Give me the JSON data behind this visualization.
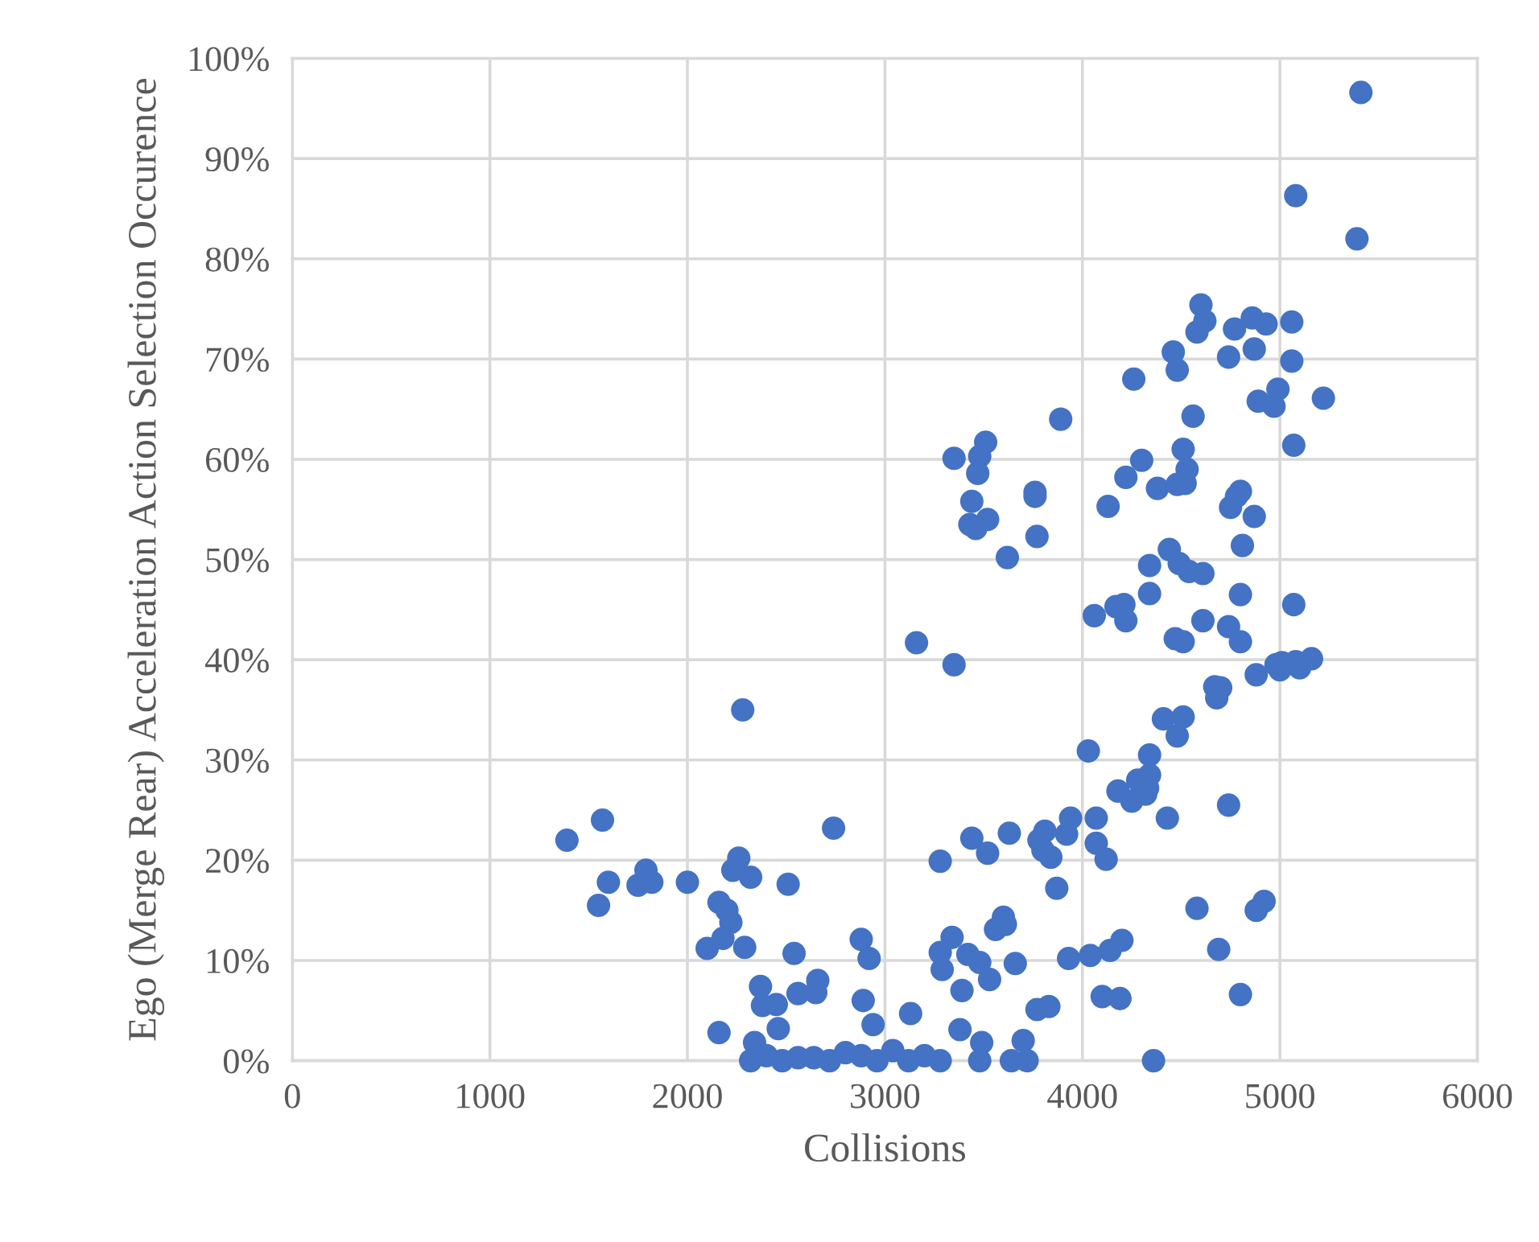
{
  "chart_data": {
    "type": "scatter",
    "xlabel": "Collisions",
    "ylabel": "Ego (Merge Rear) Acceleration Action Selection Occurence",
    "xlim": [
      0,
      6000
    ],
    "xticks": [
      0,
      1000,
      2000,
      3000,
      4000,
      5000,
      6000
    ],
    "ylim": [
      0,
      100
    ],
    "yticks": [
      {
        "value": 0,
        "label": "0%"
      },
      {
        "value": 10,
        "label": "10%"
      },
      {
        "value": 20,
        "label": "20%"
      },
      {
        "value": 30,
        "label": "30%"
      },
      {
        "value": 40,
        "label": "40%"
      },
      {
        "value": 50,
        "label": "50%"
      },
      {
        "value": 60,
        "label": "60%"
      },
      {
        "value": 70,
        "label": "70%"
      },
      {
        "value": 80,
        "label": "80%"
      },
      {
        "value": 90,
        "label": "90%"
      },
      {
        "value": 100,
        "label": "100%"
      }
    ],
    "grid": true,
    "marker": "circle",
    "series": [
      {
        "color": "#4472c4",
        "x": [
          1390,
          1570,
          1550,
          1600,
          1750,
          1790,
          1820,
          2000,
          2100,
          2160,
          2200,
          2220,
          2230,
          2260,
          2180,
          2280,
          2290,
          2320,
          2160,
          2370,
          2380,
          2450,
          2460,
          2340,
          2320,
          2400,
          2480,
          2560,
          2640,
          2720,
          2800,
          2880,
          2960,
          3040,
          3120,
          3200,
          3280,
          2510,
          2540,
          2560,
          2660,
          2650,
          2740,
          2880,
          2890,
          2920,
          2940,
          3130,
          3160,
          3280,
          3280,
          3290,
          3340,
          3350,
          3350,
          3380,
          3390,
          3420,
          3440,
          3430,
          3440,
          3460,
          3470,
          3480,
          3480,
          3490,
          3480,
          3510,
          3520,
          3520,
          3530,
          3560,
          3600,
          3610,
          3620,
          3630,
          3640,
          3660,
          3700,
          3720,
          3760,
          3760,
          3770,
          3770,
          3780,
          3800,
          3810,
          3840,
          3830,
          3870,
          3890,
          3930,
          3940,
          3920,
          4030,
          4040,
          4060,
          4070,
          4070,
          4100,
          4120,
          4130,
          4140,
          4170,
          4180,
          4190,
          4200,
          4210,
          4220,
          4220,
          4250,
          4260,
          4280,
          4300,
          4320,
          4330,
          4340,
          4340,
          4340,
          4340,
          4360,
          4380,
          4410,
          4430,
          4440,
          4460,
          4470,
          4480,
          4480,
          4480,
          4490,
          4510,
          4510,
          4510,
          4520,
          4530,
          4540,
          4560,
          4580,
          4580,
          4600,
          4610,
          4610,
          4620,
          4670,
          4680,
          4690,
          4700,
          4740,
          4740,
          4740,
          4750,
          4770,
          4780,
          4800,
          4800,
          4800,
          4800,
          4810,
          4860,
          4870,
          4870,
          4880,
          4880,
          4890,
          4920,
          4930,
          4970,
          4980,
          4990,
          5000,
          5010,
          5060,
          5060,
          5070,
          5070,
          5080,
          5080,
          5100,
          5160,
          5220,
          5390,
          5410
        ],
        "values": [
          22,
          24,
          15.5,
          17.8,
          17.5,
          19,
          17.8,
          17.8,
          11.2,
          15.8,
          15,
          13.8,
          19,
          20.2,
          12.2,
          35,
          11.3,
          18.3,
          2.8,
          7.4,
          5.5,
          5.6,
          3.2,
          1.8,
          0,
          0.5,
          0,
          0.3,
          0.3,
          0,
          0.8,
          0.5,
          0,
          1,
          0,
          0.5,
          0,
          17.6,
          10.7,
          6.7,
          8,
          6.8,
          23.2,
          12.1,
          6,
          10.2,
          3.6,
          4.7,
          41.7,
          19.9,
          10.8,
          9.1,
          12.3,
          39.5,
          60.1,
          3.1,
          7,
          10.6,
          22.2,
          53.5,
          55.8,
          53.1,
          58.6,
          60.3,
          9.8,
          1.8,
          0,
          61.7,
          54,
          20.7,
          8.1,
          13.1,
          14.3,
          13.6,
          50.2,
          22.7,
          0,
          9.7,
          2,
          0,
          56.3,
          56.7,
          52.3,
          5.1,
          22,
          21,
          22.9,
          20.3,
          5.4,
          17.2,
          64,
          10.2,
          24.2,
          22.6,
          30.9,
          10.5,
          44.4,
          24.2,
          21.7,
          6.4,
          20.1,
          55.3,
          11,
          45.3,
          26.9,
          6.2,
          12,
          45.5,
          43.9,
          58.2,
          25.9,
          68,
          28,
          59.9,
          26.6,
          27.2,
          30.5,
          28.5,
          49.4,
          46.6,
          0,
          57.1,
          34.1,
          24.2,
          51,
          70.7,
          42.1,
          32.4,
          68.9,
          57.5,
          49.6,
          41.8,
          34.3,
          61,
          57.6,
          59,
          48.8,
          64.3,
          15.2,
          72.7,
          75.4,
          43.9,
          48.6,
          73.8,
          37.3,
          36.2,
          11.1,
          37.2,
          43.3,
          70.2,
          25.5,
          55.2,
          73,
          56.3,
          6.6,
          56.8,
          46.5,
          41.8,
          51.4,
          74.1,
          71,
          54.3,
          15,
          38.5,
          65.8,
          15.9,
          73.5,
          65.3,
          39.5,
          67,
          39,
          39.7,
          73.7,
          69.8,
          61.4,
          45.5,
          39.8,
          86.3,
          39.2,
          40.1,
          66.1,
          82,
          96.6
        ]
      }
    ]
  }
}
